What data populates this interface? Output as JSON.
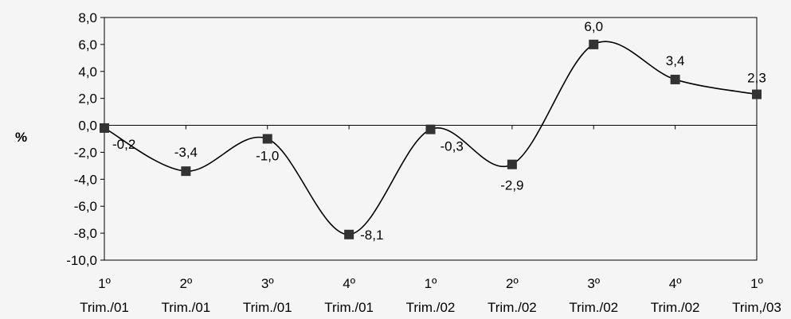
{
  "chart_data": {
    "type": "line",
    "ylabel": "%",
    "xlabel": "",
    "title": "",
    "ylim": [
      -10,
      8
    ],
    "ytick_values": [
      8,
      6,
      4,
      2,
      0,
      -2,
      -4,
      -6,
      -8,
      -10
    ],
    "ytick_labels": [
      "8,0",
      "6,0",
      "4,0",
      "2,0",
      "0,0",
      "-2,0",
      "-4,0",
      "-6,0",
      "-8,0",
      "-10,0"
    ],
    "categories": [
      [
        "1º",
        "Trim./01"
      ],
      [
        "2º",
        "Trim./01"
      ],
      [
        "3º",
        "Trim./01"
      ],
      [
        "4º",
        "Trim./01"
      ],
      [
        "1º",
        "Trim./02"
      ],
      [
        "2º",
        "Trim./02"
      ],
      [
        "3º",
        "Trim./02"
      ],
      [
        "4º",
        "Trim./02"
      ],
      [
        "1º",
        "Trim,/03"
      ]
    ],
    "values": [
      -0.2,
      -3.4,
      -1.0,
      -8.1,
      -0.3,
      -2.9,
      6.0,
      3.4,
      2.3
    ],
    "value_labels": [
      "-0,2",
      "-3,4",
      "-1,0",
      "-8,1",
      "-0,3",
      "-2,9",
      "6,0",
      "3,4",
      "2,3"
    ],
    "grid": false,
    "line_color": "#000000",
    "marker_color": "#333333",
    "marker": "square",
    "smooth": true
  }
}
